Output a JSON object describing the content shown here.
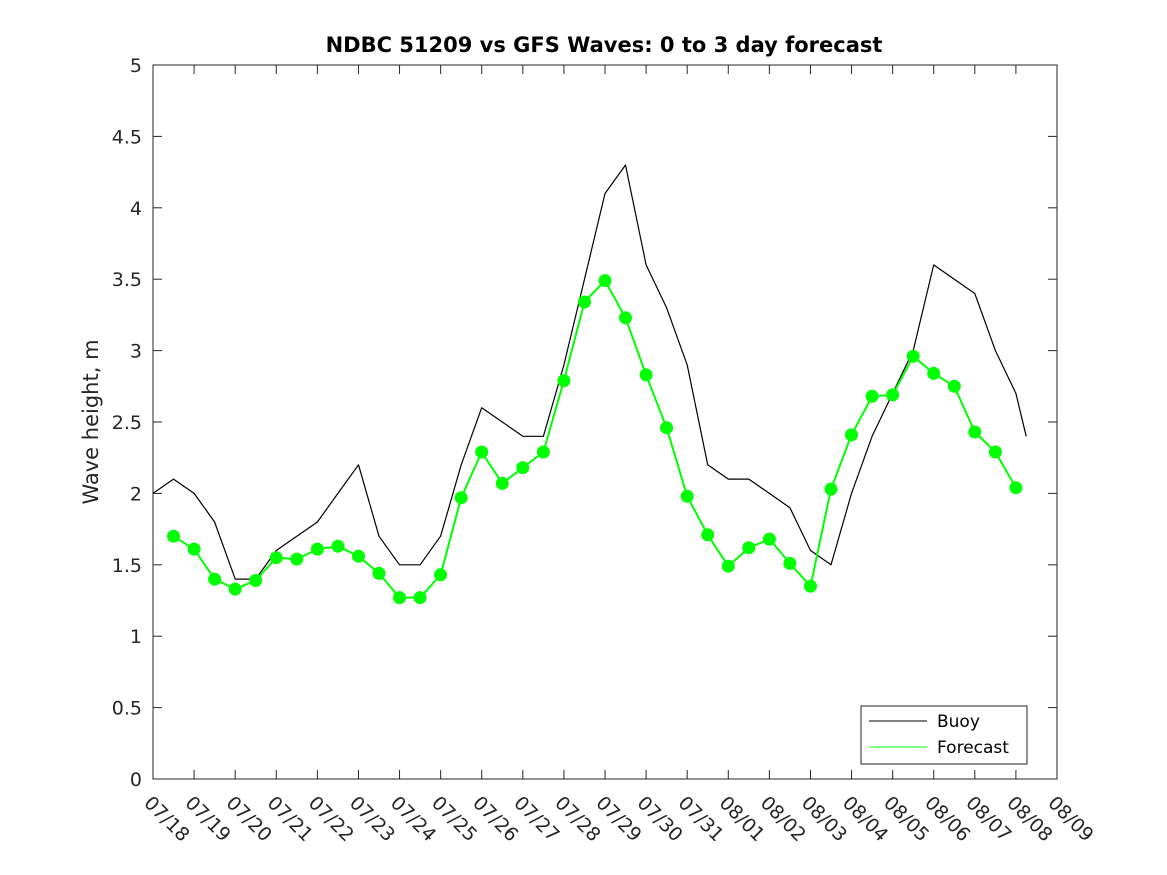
{
  "chart_data": {
    "type": "line",
    "title": "NDBC 51209 vs GFS Waves: 0 to 3 day forecast",
    "xlabel": "",
    "ylabel": "Wave height, m",
    "x_tick_labels": [
      "07/18",
      "07/19",
      "07/20",
      "07/21",
      "07/22",
      "07/23",
      "07/24",
      "07/25",
      "07/26",
      "07/27",
      "07/28",
      "07/29",
      "07/30",
      "07/31",
      "08/01",
      "08/02",
      "08/03",
      "08/04",
      "08/05",
      "08/06",
      "08/07",
      "08/08",
      "08/09"
    ],
    "y_tick_labels": [
      "0",
      "0.5",
      "1",
      "1.5",
      "2",
      "2.5",
      "3",
      "3.5",
      "4",
      "4.5",
      "5"
    ],
    "xlim": [
      "07/18 00:00",
      "08/09 00:00"
    ],
    "ylim": [
      0,
      5
    ],
    "grid": false,
    "legend_position": "bottom-right",
    "colors": {
      "buoy": "#000000",
      "forecast": "#00ff00"
    },
    "series": [
      {
        "name": "Buoy",
        "x": [
          "07/18 00:00",
          "07/18 12:00",
          "07/19 00:00",
          "07/19 12:00",
          "07/20 00:00",
          "07/20 12:00",
          "07/21 00:00",
          "07/21 12:00",
          "07/22 00:00",
          "07/22 12:00",
          "07/23 00:00",
          "07/23 12:00",
          "07/24 00:00",
          "07/24 12:00",
          "07/25 00:00",
          "07/25 12:00",
          "07/26 00:00",
          "07/26 12:00",
          "07/27 00:00",
          "07/27 12:00",
          "07/28 00:00",
          "07/28 12:00",
          "07/29 00:00",
          "07/29 12:00",
          "07/30 00:00",
          "07/30 12:00",
          "07/31 00:00",
          "07/31 12:00",
          "08/01 00:00",
          "08/01 12:00",
          "08/02 00:00",
          "08/02 12:00",
          "08/03 00:00",
          "08/03 12:00",
          "08/04 00:00",
          "08/04 12:00",
          "08/05 00:00",
          "08/05 12:00",
          "08/06 00:00",
          "08/06 12:00",
          "08/07 00:00",
          "08/07 12:00",
          "08/08 00:00",
          "08/08 06:00"
        ],
        "values": [
          2.0,
          2.1,
          2.0,
          1.8,
          1.4,
          1.4,
          1.6,
          1.7,
          1.8,
          2.0,
          2.2,
          1.7,
          1.5,
          1.5,
          1.7,
          2.2,
          2.6,
          2.5,
          2.4,
          2.4,
          2.9,
          3.5,
          4.1,
          4.3,
          3.6,
          3.3,
          2.9,
          2.2,
          2.1,
          2.1,
          2.0,
          1.9,
          1.6,
          1.5,
          2.0,
          2.4,
          2.7,
          3.0,
          3.6,
          3.5,
          3.4,
          3.0,
          2.7,
          2.4
        ]
      },
      {
        "name": "Forecast",
        "x": [
          "07/18 12:00",
          "07/19 00:00",
          "07/19 12:00",
          "07/20 00:00",
          "07/20 12:00",
          "07/21 00:00",
          "07/21 12:00",
          "07/22 00:00",
          "07/22 12:00",
          "07/23 00:00",
          "07/23 12:00",
          "07/24 00:00",
          "07/24 12:00",
          "07/25 00:00",
          "07/25 12:00",
          "07/26 00:00",
          "07/26 12:00",
          "07/27 00:00",
          "07/27 12:00",
          "07/28 00:00",
          "07/28 12:00",
          "07/29 00:00",
          "07/29 12:00",
          "07/30 00:00",
          "07/30 12:00",
          "07/31 00:00",
          "07/31 12:00",
          "08/01 00:00",
          "08/01 12:00",
          "08/02 00:00",
          "08/02 12:00",
          "08/03 00:00",
          "08/03 12:00",
          "08/04 00:00",
          "08/04 12:00",
          "08/05 00:00",
          "08/05 12:00",
          "08/06 00:00",
          "08/06 12:00",
          "08/07 00:00",
          "08/07 12:00",
          "08/08 00:00"
        ],
        "values": [
          1.7,
          1.61,
          1.4,
          1.33,
          1.39,
          1.55,
          1.54,
          1.61,
          1.63,
          1.56,
          1.44,
          1.27,
          1.27,
          1.43,
          1.97,
          2.29,
          2.07,
          2.18,
          2.29,
          2.79,
          3.34,
          3.49,
          3.23,
          2.83,
          2.46,
          1.98,
          1.71,
          1.49,
          1.62,
          1.68,
          1.51,
          1.35,
          2.03,
          2.41,
          2.68,
          2.69,
          2.96,
          2.84,
          2.75,
          2.43,
          2.29,
          2.04
        ]
      }
    ]
  }
}
